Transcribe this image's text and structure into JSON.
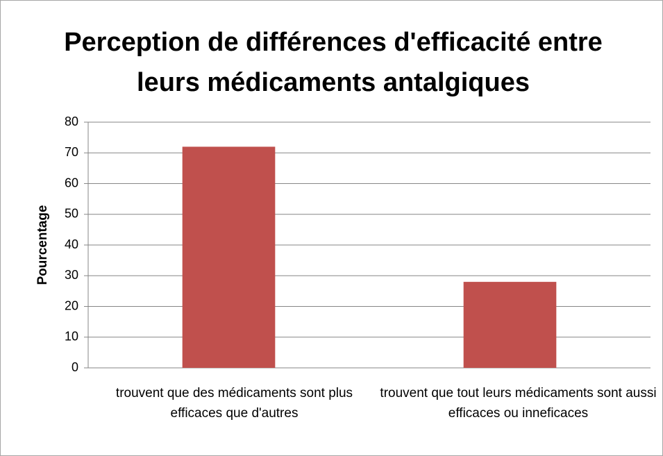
{
  "chart_data": {
    "type": "bar",
    "title": "Perception de différences d'efficacité entre leurs médicaments antalgiques",
    "y_label": "Pourcentage",
    "categories": [
      "trouvent que des médicaments sont plus efficaces que d'autres",
      "trouvent que tout leurs médicaments sont aussi efficaces ou inneficaces"
    ],
    "values": [
      72,
      28
    ],
    "color": "#c0504d",
    "ylim": [
      0,
      80
    ],
    "yticks": [
      0,
      10,
      20,
      30,
      40,
      50,
      60,
      70,
      80
    ],
    "grid": true
  }
}
